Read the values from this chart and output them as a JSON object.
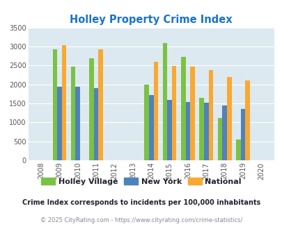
{
  "title": "Holley Property Crime Index",
  "title_color": "#1874cd",
  "years": [
    "2008",
    "2009",
    "2010",
    "2011",
    "2012",
    "2013",
    "2014",
    "2015",
    "2016",
    "2017",
    "2018",
    "2019",
    "2020"
  ],
  "holley_village": [
    0,
    2930,
    2460,
    2680,
    0,
    0,
    1990,
    3090,
    2730,
    1640,
    1110,
    545,
    0
  ],
  "new_york": [
    0,
    1940,
    1940,
    1910,
    0,
    0,
    1710,
    1590,
    1545,
    1510,
    1440,
    1355,
    0
  ],
  "national": [
    0,
    3035,
    0,
    2920,
    0,
    0,
    2590,
    2490,
    2470,
    2370,
    2195,
    2095,
    0
  ],
  "holley_color": "#7bc242",
  "ny_color": "#4f81bd",
  "national_color": "#f9a832",
  "bg_color": "#dce9f0",
  "ylim": [
    0,
    3500
  ],
  "yticks": [
    0,
    500,
    1000,
    1500,
    2000,
    2500,
    3000,
    3500
  ],
  "bar_width": 0.25,
  "legend_labels": [
    "Holley Village",
    "New York",
    "National"
  ],
  "footnote1": "Crime Index corresponds to incidents per 100,000 inhabitants",
  "footnote2": "© 2025 CityRating.com - https://www.cityrating.com/crime-statistics/",
  "footnote1_color": "#222233",
  "footnote2_color": "#888899"
}
